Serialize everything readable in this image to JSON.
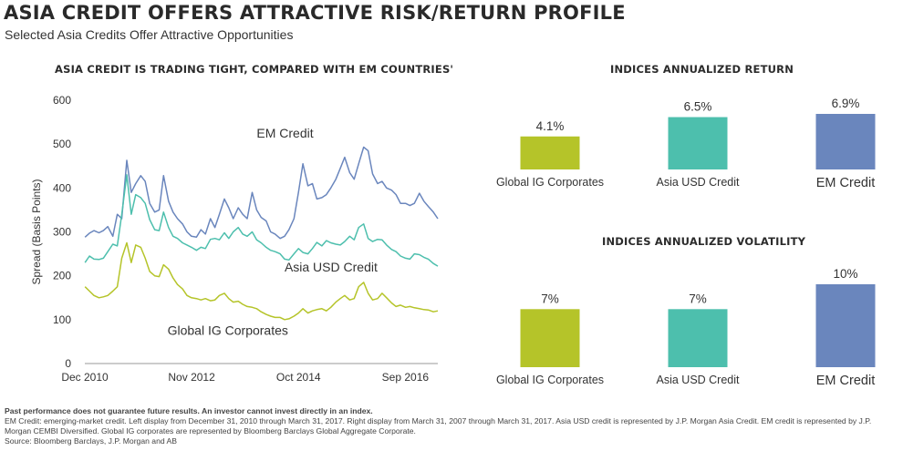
{
  "header": {
    "title": "ASIA CREDIT OFFERS ATTRACTIVE RISK/RETURN PROFILE",
    "subtitle": "Selected Asia Credits Offer Attractive Opportunities"
  },
  "colors": {
    "em_credit": "#6a86bd",
    "asia_usd": "#4dbfad",
    "global_ig": "#b5c429",
    "axis": "#999999"
  },
  "chart_data": [
    {
      "type": "line",
      "title": "ASIA CREDIT IS TRADING TIGHT, COMPARED WITH EM COUNTRIES'",
      "xlabel": "",
      "ylabel": "Spread (Basis Points)",
      "ylim": [
        0,
        600
      ],
      "yticks": [
        0,
        100,
        200,
        300,
        400,
        500,
        600
      ],
      "xlim": [
        2010.917,
        2017.25
      ],
      "xticks": [
        {
          "value": 2010.917,
          "label": "Dec 2010"
        },
        {
          "value": 2012.833,
          "label": "Nov 2012"
        },
        {
          "value": 2014.75,
          "label": "Oct 2014"
        },
        {
          "value": 2016.667,
          "label": "Sep 2016"
        }
      ],
      "series": [
        {
          "name": "EM Credit",
          "color": "#6a86bd",
          "x": [
            2010.92,
            2011.0,
            2011.08,
            2011.17,
            2011.25,
            2011.33,
            2011.42,
            2011.5,
            2011.58,
            2011.67,
            2011.75,
            2011.83,
            2011.92,
            2012.0,
            2012.08,
            2012.17,
            2012.25,
            2012.33,
            2012.42,
            2012.5,
            2012.58,
            2012.67,
            2012.75,
            2012.83,
            2012.92,
            2013.0,
            2013.08,
            2013.17,
            2013.25,
            2013.33,
            2013.42,
            2013.5,
            2013.58,
            2013.67,
            2013.75,
            2013.83,
            2013.92,
            2014.0,
            2014.08,
            2014.17,
            2014.25,
            2014.33,
            2014.42,
            2014.5,
            2014.58,
            2014.67,
            2014.75,
            2014.83,
            2014.92,
            2015.0,
            2015.08,
            2015.17,
            2015.25,
            2015.33,
            2015.42,
            2015.5,
            2015.58,
            2015.67,
            2015.75,
            2015.83,
            2015.92,
            2016.0,
            2016.08,
            2016.17,
            2016.25,
            2016.33,
            2016.42,
            2016.5,
            2016.58,
            2016.67,
            2016.75,
            2016.83,
            2016.92,
            2017.0,
            2017.08,
            2017.17,
            2017.25
          ],
          "values": [
            288,
            297,
            303,
            298,
            303,
            312,
            290,
            340,
            330,
            463,
            390,
            410,
            428,
            415,
            365,
            345,
            350,
            428,
            370,
            345,
            330,
            318,
            300,
            290,
            288,
            305,
            295,
            330,
            310,
            340,
            375,
            355,
            330,
            355,
            340,
            330,
            390,
            350,
            333,
            325,
            300,
            295,
            285,
            290,
            305,
            330,
            390,
            455,
            405,
            410,
            375,
            378,
            385,
            400,
            420,
            445,
            470,
            435,
            420,
            455,
            493,
            485,
            432,
            410,
            415,
            400,
            395,
            385,
            365,
            365,
            360,
            365,
            388,
            370,
            358,
            345,
            330
          ]
        },
        {
          "name": "Asia USD Credit",
          "color": "#4dbfad",
          "x": [
            2010.92,
            2011.0,
            2011.08,
            2011.17,
            2011.25,
            2011.33,
            2011.42,
            2011.5,
            2011.58,
            2011.67,
            2011.75,
            2011.83,
            2011.92,
            2012.0,
            2012.08,
            2012.17,
            2012.25,
            2012.33,
            2012.42,
            2012.5,
            2012.58,
            2012.67,
            2012.75,
            2012.83,
            2012.92,
            2013.0,
            2013.08,
            2013.17,
            2013.25,
            2013.33,
            2013.42,
            2013.5,
            2013.58,
            2013.67,
            2013.75,
            2013.83,
            2013.92,
            2014.0,
            2014.08,
            2014.17,
            2014.25,
            2014.33,
            2014.42,
            2014.5,
            2014.58,
            2014.67,
            2014.75,
            2014.83,
            2014.92,
            2015.0,
            2015.08,
            2015.17,
            2015.25,
            2015.33,
            2015.42,
            2015.5,
            2015.58,
            2015.67,
            2015.75,
            2015.83,
            2015.92,
            2016.0,
            2016.08,
            2016.17,
            2016.25,
            2016.33,
            2016.42,
            2016.5,
            2016.58,
            2016.67,
            2016.75,
            2016.83,
            2016.92,
            2017.0,
            2017.08,
            2017.17,
            2017.25
          ],
          "values": [
            230,
            245,
            238,
            237,
            240,
            255,
            272,
            268,
            340,
            430,
            340,
            385,
            378,
            365,
            328,
            305,
            303,
            345,
            310,
            290,
            285,
            275,
            270,
            265,
            258,
            265,
            262,
            283,
            285,
            282,
            298,
            285,
            300,
            310,
            295,
            290,
            300,
            282,
            275,
            265,
            258,
            255,
            250,
            238,
            236,
            250,
            262,
            253,
            250,
            262,
            276,
            268,
            280,
            275,
            272,
            270,
            278,
            290,
            282,
            310,
            318,
            285,
            278,
            283,
            282,
            270,
            260,
            255,
            245,
            240,
            238,
            250,
            248,
            242,
            238,
            228,
            222
          ]
        },
        {
          "name": "Global IG Corporates",
          "color": "#b5c429",
          "x": [
            2010.92,
            2011.0,
            2011.08,
            2011.17,
            2011.25,
            2011.33,
            2011.42,
            2011.5,
            2011.58,
            2011.67,
            2011.75,
            2011.83,
            2011.92,
            2012.0,
            2012.08,
            2012.17,
            2012.25,
            2012.33,
            2012.42,
            2012.5,
            2012.58,
            2012.67,
            2012.75,
            2012.83,
            2012.92,
            2013.0,
            2013.08,
            2013.17,
            2013.25,
            2013.33,
            2013.42,
            2013.5,
            2013.58,
            2013.67,
            2013.75,
            2013.83,
            2013.92,
            2014.0,
            2014.08,
            2014.17,
            2014.25,
            2014.33,
            2014.42,
            2014.5,
            2014.58,
            2014.67,
            2014.75,
            2014.83,
            2014.92,
            2015.0,
            2015.08,
            2015.17,
            2015.25,
            2015.33,
            2015.42,
            2015.5,
            2015.58,
            2015.67,
            2015.75,
            2015.83,
            2015.92,
            2016.0,
            2016.08,
            2016.17,
            2016.25,
            2016.33,
            2016.42,
            2016.5,
            2016.58,
            2016.67,
            2016.75,
            2016.83,
            2016.92,
            2017.0,
            2017.08,
            2017.17,
            2017.25
          ],
          "values": [
            175,
            165,
            155,
            150,
            152,
            155,
            165,
            175,
            240,
            275,
            230,
            270,
            265,
            240,
            210,
            200,
            198,
            225,
            215,
            195,
            180,
            170,
            155,
            150,
            148,
            145,
            148,
            143,
            145,
            155,
            160,
            148,
            140,
            142,
            135,
            130,
            128,
            125,
            118,
            112,
            108,
            105,
            105,
            100,
            102,
            108,
            115,
            125,
            115,
            120,
            123,
            125,
            120,
            128,
            140,
            148,
            155,
            145,
            148,
            175,
            185,
            160,
            145,
            148,
            160,
            150,
            138,
            130,
            133,
            128,
            130,
            127,
            125,
            123,
            122,
            118,
            120
          ]
        }
      ],
      "annotations": [
        {
          "text": "EM Credit",
          "series": "EM Credit"
        },
        {
          "text": "Asia USD Credit",
          "series": "Asia USD Credit"
        },
        {
          "text": "Global IG Corporates",
          "series": "Global IG Corporates"
        }
      ]
    },
    {
      "type": "bar",
      "title": "INDICES ANNUALIZED RETURN",
      "categories": [
        "Global IG Corporates",
        "Asia USD Credit",
        "EM Credit"
      ],
      "values": [
        4.1,
        6.5,
        6.9
      ],
      "value_labels": [
        "4.1%",
        "6.5%",
        "6.9%"
      ],
      "colors": [
        "#b5c429",
        "#4dbfad",
        "#6a86bd"
      ],
      "ylim": [
        0,
        6.9
      ]
    },
    {
      "type": "bar",
      "title": "INDICES ANNUALIZED VOLATILITY",
      "categories": [
        "Global IG Corporates",
        "Asia USD Credit",
        "EM Credit"
      ],
      "values": [
        7,
        7,
        10
      ],
      "value_labels": [
        "7%",
        "7%",
        "10%"
      ],
      "colors": [
        "#b5c429",
        "#4dbfad",
        "#6a86bd"
      ],
      "ylim": [
        0,
        10
      ]
    }
  ],
  "footnotes": {
    "disclaimer": "Past performance does not guarantee future results. An investor cannot invest directly in an index.",
    "line1": "EM Credit: emerging-market credit. Left display from December 31, 2010 through March 31, 2017. Right display from March 31, 2007 through March 31, 2017. Asia USD credit is represented by J.P. Morgan Asia Credit. EM credit is represented by J.P. Morgan CEMBI Diversified. Global IG corporates are represented by Bloomberg Barclays Global Aggregate Corporate.",
    "source": "Source: Bloomberg Barclays, J.P. Morgan and AB"
  }
}
